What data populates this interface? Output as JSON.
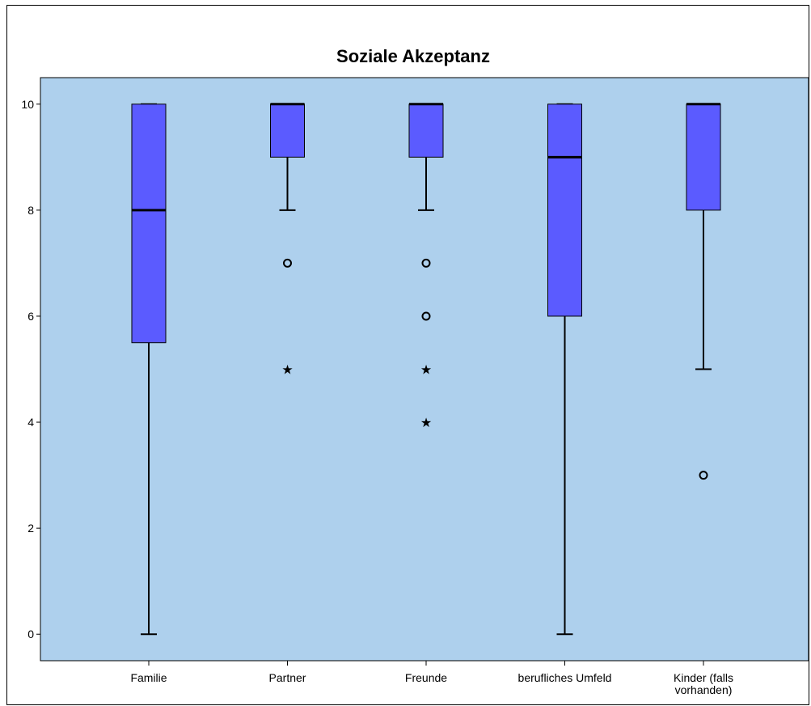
{
  "chart_data": {
    "type": "boxplot",
    "title": "Soziale Akzeptanz",
    "xlabel": "",
    "ylabel": "",
    "ylim": [
      -0.5,
      10.5
    ],
    "yticks": [
      0,
      2,
      4,
      6,
      8,
      10
    ],
    "grid": false,
    "colors": {
      "plot_background": "#aed0ed",
      "box_fill": "#5b5bff",
      "line": "#000000"
    },
    "categories": [
      [
        "Familie"
      ],
      [
        "Partner"
      ],
      [
        "Freunde"
      ],
      [
        "berufliches Umfeld"
      ],
      [
        "Kinder (falls",
        "vorhanden)"
      ]
    ],
    "boxes": [
      {
        "whisker_low": 0,
        "q1": 5.5,
        "median": 8,
        "q3": 10,
        "whisker_high": 10,
        "outliers": [],
        "extremes": []
      },
      {
        "whisker_low": 8,
        "q1": 9,
        "median": 10,
        "q3": 10,
        "whisker_high": 10,
        "outliers": [
          7
        ],
        "extremes": [
          5
        ]
      },
      {
        "whisker_low": 8,
        "q1": 9,
        "median": 10,
        "q3": 10,
        "whisker_high": 10,
        "outliers": [
          7,
          6
        ],
        "extremes": [
          5,
          4
        ]
      },
      {
        "whisker_low": 0,
        "q1": 6,
        "median": 9,
        "q3": 10,
        "whisker_high": 10,
        "outliers": [],
        "extremes": []
      },
      {
        "whisker_low": 5,
        "q1": 8,
        "median": 10,
        "q3": 10,
        "whisker_high": 10,
        "outliers": [
          3
        ],
        "extremes": []
      }
    ]
  }
}
